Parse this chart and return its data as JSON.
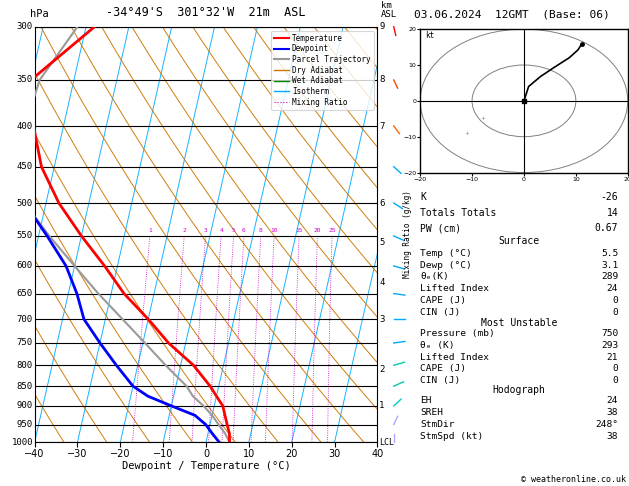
{
  "title_left": "-34°49'S  301°32'W  21m  ASL",
  "title_right": "03.06.2024  12GMT  (Base: 06)",
  "xlabel": "Dewpoint / Temperature (°C)",
  "stats": {
    "K": -26,
    "Totals_Totals": 14,
    "PW_cm": 0.67,
    "Surface_Temp": 5.5,
    "Surface_Dewp": 3.1,
    "Surface_ThetaE": 289,
    "Surface_LI": 24,
    "Surface_CAPE": 0,
    "Surface_CIN": 0,
    "MU_Pressure": 750,
    "MU_ThetaE": 293,
    "MU_LI": 21,
    "MU_CAPE": 0,
    "MU_CIN": 0,
    "EH": 24,
    "SREH": 38,
    "StmDir": "248°",
    "StmSpd": 38
  },
  "temp_profile": {
    "pressure": [
      1000,
      975,
      950,
      925,
      900,
      875,
      850,
      800,
      750,
      700,
      650,
      600,
      550,
      500,
      450,
      400,
      350,
      300
    ],
    "temperature": [
      5.5,
      5.0,
      4.0,
      3.0,
      2.0,
      0.0,
      -2.0,
      -7.0,
      -14.0,
      -20.0,
      -27.0,
      -33.0,
      -40.0,
      -47.0,
      -53.0,
      -57.0,
      -60.0,
      -48.0
    ]
  },
  "dewp_profile": {
    "pressure": [
      1000,
      975,
      950,
      925,
      900,
      875,
      850,
      800,
      750,
      700,
      650,
      600,
      550,
      500,
      450,
      400,
      350,
      300
    ],
    "temperature": [
      3.1,
      1.0,
      -1.0,
      -4.0,
      -10.0,
      -16.0,
      -20.0,
      -25.0,
      -30.0,
      -35.0,
      -38.0,
      -42.0,
      -48.0,
      -55.0,
      -62.0,
      -67.0,
      -68.0,
      -65.0
    ]
  },
  "parcel_profile": {
    "pressure": [
      1000,
      975,
      950,
      925,
      900,
      875,
      850,
      800,
      750,
      700,
      650,
      600,
      550,
      500,
      450,
      400,
      350,
      300
    ],
    "temperature": [
      5.5,
      4.0,
      2.0,
      0.0,
      -2.5,
      -5.5,
      -7.5,
      -13.5,
      -19.5,
      -26.0,
      -33.0,
      -40.0,
      -47.5,
      -55.0,
      -59.0,
      -59.0,
      -58.0,
      -52.0
    ]
  },
  "wind_barbs": {
    "pressure": [
      1000,
      950,
      900,
      850,
      800,
      750,
      700,
      650,
      600,
      550,
      500,
      450,
      400,
      350,
      300
    ],
    "speed": [
      5,
      8,
      10,
      15,
      18,
      20,
      15,
      12,
      10,
      8,
      6,
      5,
      8,
      10,
      12
    ],
    "direction": [
      180,
      200,
      220,
      240,
      250,
      260,
      270,
      280,
      290,
      300,
      310,
      320,
      330,
      340,
      350
    ]
  },
  "hodo_points": {
    "u": [
      0.0,
      0.9,
      3.2,
      6.0,
      8.7,
      10.4,
      11.1
    ],
    "v": [
      0.0,
      4.0,
      6.8,
      9.5,
      12.0,
      14.2,
      15.8
    ]
  },
  "hodo_small_markers": {
    "u": [
      -8,
      -11
    ],
    "v": [
      -5,
      -9
    ]
  },
  "mixing_ratios": [
    1,
    2,
    3,
    4,
    5,
    6,
    8,
    10,
    15,
    20,
    25
  ],
  "pressure_levels": [
    300,
    350,
    400,
    450,
    500,
    550,
    600,
    650,
    700,
    750,
    800,
    850,
    900,
    950,
    1000
  ],
  "km_labels": {
    "9": 300,
    "8": 350,
    "7": 400,
    "6": 500,
    "5": 560,
    "4": 630,
    "3": 700,
    "2": 810,
    "1": 900
  },
  "t_min": -40,
  "t_max": 40,
  "p_min": 300,
  "p_max": 1000,
  "skew_factor": 22,
  "colors": {
    "temperature": "#ff0000",
    "dewpoint": "#0000ff",
    "parcel": "#999999",
    "dry_adiabat": "#cc7700",
    "wet_adiabat": "#008800",
    "isotherm": "#00aaff",
    "mixing_ratio": "#cc00cc",
    "isobar": "#000000"
  },
  "wind_barb_colors": {
    "300": "#ff0000",
    "350": "#ff4400",
    "400": "#ff6600",
    "450": "#00aaff",
    "500": "#00aaff",
    "550": "#00aaff",
    "600": "#00aaff",
    "650": "#00aaff",
    "700": "#00aaff",
    "750": "#00aaff",
    "800": "#00aaff",
    "850": "#00aaff",
    "900": "#00cccc",
    "950": "#00cccc",
    "1000": "#00cccc"
  }
}
